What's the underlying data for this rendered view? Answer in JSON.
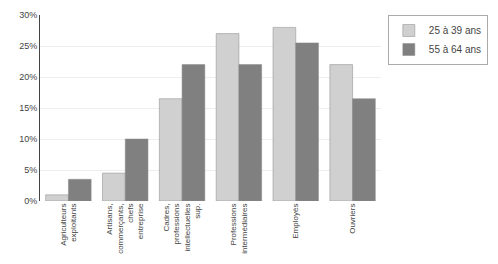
{
  "chart_data": {
    "type": "bar",
    "categories": [
      "Agriculteurs\nexploitants",
      "Artisans,\ncommerçants,\nchefs\nentreprise",
      "Cadres,\nprofessions\nintellectuelles\nsup.",
      "Professions\nintermédiaires",
      "Employés",
      "Ouvriers"
    ],
    "series": [
      {
        "name": "25 à 39 ans",
        "color": "#d0d0d0",
        "values": [
          1.0,
          4.5,
          16.5,
          27.0,
          28.0,
          22.0
        ]
      },
      {
        "name": "55 à 64 ans",
        "color": "#808080",
        "values": [
          3.5,
          10.0,
          22.0,
          22.0,
          25.5,
          16.5
        ]
      }
    ],
    "ylim": [
      0,
      30
    ],
    "yticks": [
      {
        "value": 0,
        "label": "0%"
      },
      {
        "value": 5,
        "label": "5%"
      },
      {
        "value": 10,
        "label": "10%"
      },
      {
        "value": 15,
        "label": "15%"
      },
      {
        "value": 20,
        "label": "20%"
      },
      {
        "value": 25,
        "label": "25%"
      },
      {
        "value": 30,
        "label": "30%"
      }
    ],
    "grid": true,
    "legend": "right"
  }
}
